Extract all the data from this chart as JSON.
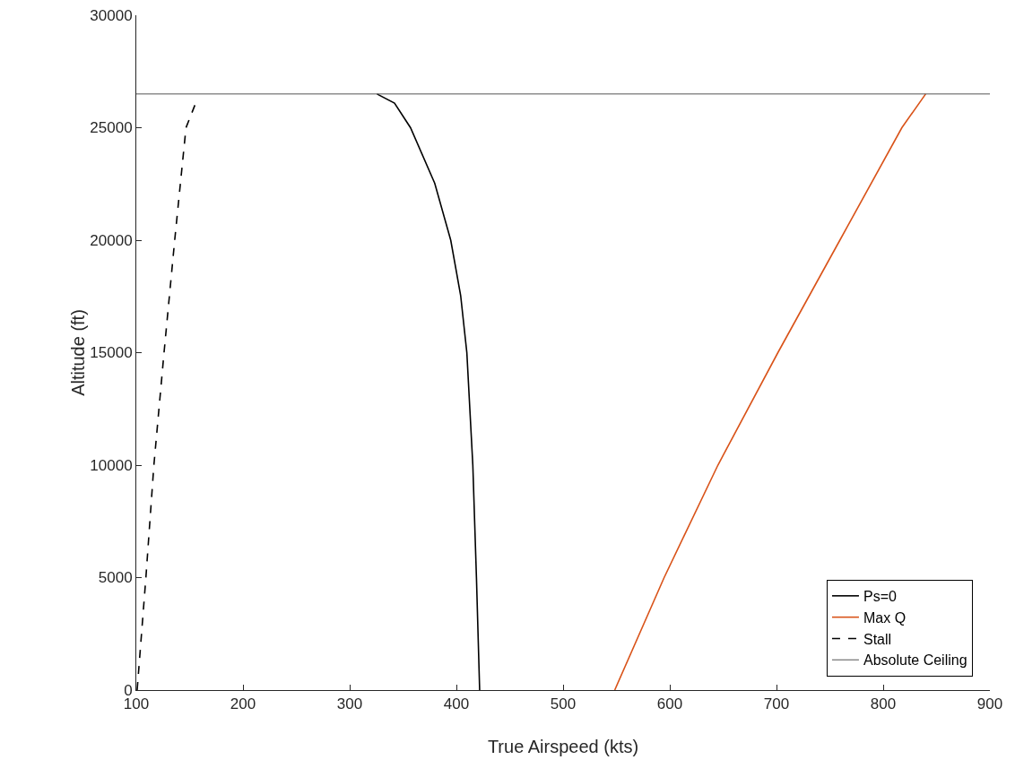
{
  "chart_data": {
    "type": "line",
    "xlabel": "True Airspeed (kts)",
    "ylabel": "Altitude (ft)",
    "xlim": [
      100,
      900
    ],
    "xticks": [
      100,
      200,
      300,
      400,
      500,
      600,
      700,
      800,
      900
    ],
    "ylim": [
      0,
      30000
    ],
    "yticks": [
      0,
      5000,
      10000,
      15000,
      20000,
      25000,
      30000
    ],
    "grid": false,
    "legend": "bottom right",
    "marker": "none",
    "series": [
      {
        "name": "Ps=0",
        "color": "#000000",
        "line_style": "solid",
        "x": [
          421.8,
          418.8,
          415.4,
          409.8,
          404,
          394.7,
          379.7,
          357,
          342,
          325.6
        ],
        "values": [
          0,
          5000,
          10000,
          15000,
          17540,
          20000,
          22530,
          25000,
          26090,
          26500
        ]
      },
      {
        "name": "Max Q",
        "color": "#d95319",
        "line_style": "solid",
        "x": [
          548.4,
          594.7,
          645.1,
          701.3,
          759.4,
          817.5,
          839.8
        ],
        "values": [
          0,
          5000,
          10000,
          15000,
          20000,
          25000,
          26500
        ]
      },
      {
        "name": "Stall",
        "color": "#000000",
        "line_style": "dashed",
        "x": [
          100.8,
          109,
          116.5,
          126,
          136,
          146.6,
          154.9
        ],
        "values": [
          0,
          5000,
          10000,
          15000,
          20000,
          25000,
          26000
        ]
      },
      {
        "name": "Absolute Ceiling",
        "color": "#555555",
        "line_style": "solid",
        "x": [
          100,
          900
        ],
        "values": [
          26500,
          26500
        ]
      }
    ]
  }
}
